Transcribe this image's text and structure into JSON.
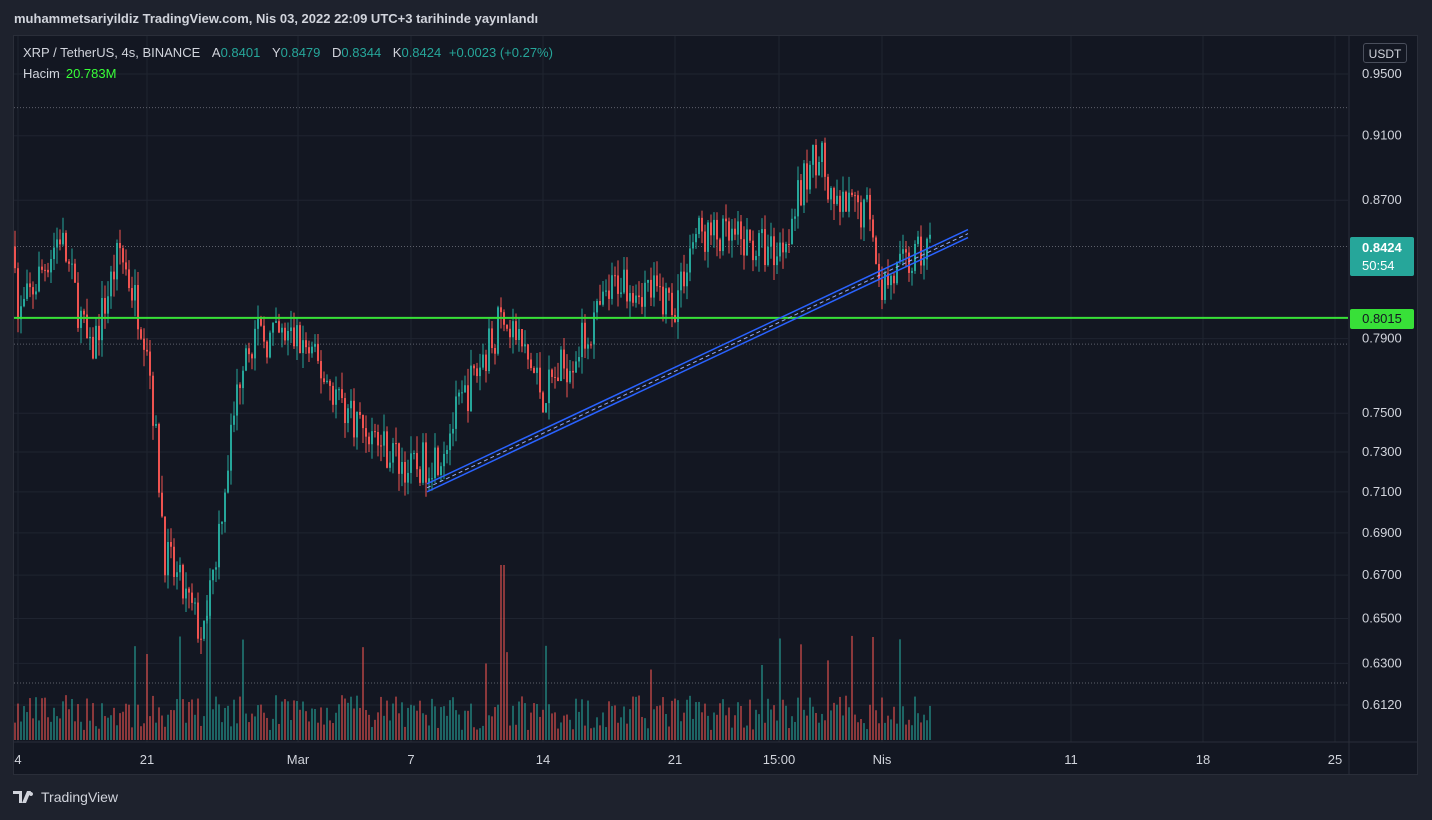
{
  "header": {
    "published_text": "muhammetsariyildiz TradingView.com, Nis 03, 2022 22:09 UTC+3 tarihinde yayınlandı"
  },
  "legend": {
    "symbol": "XRP / TetherUS, 4s, BINANCE",
    "open_label": "A",
    "open": "0.8401",
    "high_label": "Y",
    "high": "0.8479",
    "low_label": "D",
    "low": "0.8344",
    "close_label": "K",
    "close": "0.8424",
    "change": "+0.0023 (+0.27%)",
    "volume_label": "Hacim",
    "volume": "20.783M"
  },
  "price_axis": {
    "currency": "USDT"
  },
  "last_price_tag": {
    "price": "0.8424",
    "countdown": "50:54"
  },
  "level_tag": {
    "price": "0.8015"
  },
  "branding": {
    "name": "TradingView"
  },
  "chart_data": {
    "type": "candlestick",
    "symbol": "XRP / TetherUS",
    "interval": "4s",
    "exchange": "BINANCE",
    "y_scale": "log",
    "y_ticks": [
      0.95,
      0.91,
      0.87,
      0.79,
      0.75,
      0.73,
      0.71,
      0.69,
      0.67,
      0.65,
      0.63,
      0.612
    ],
    "x_ticks": [
      "4",
      "21",
      "Mar",
      "7",
      "14",
      "21",
      "15:00",
      "Nis",
      "11",
      "18",
      "25"
    ],
    "price_path": [
      {
        "x": "4",
        "price": 0.8
      },
      {
        "x": "~Feb 8",
        "price": 0.85
      },
      {
        "x": "~Feb 12",
        "price": 0.78
      },
      {
        "x": "~Feb 18",
        "price": 0.84
      },
      {
        "x": "21",
        "price": 0.79
      },
      {
        "x": "~Feb 23",
        "price": 0.68
      },
      {
        "x": "~Feb 24",
        "price": 0.64
      },
      {
        "x": "~Feb 26",
        "price": 0.79
      },
      {
        "x": "Mar",
        "price": 0.79
      },
      {
        "x": "~Mar 4",
        "price": 0.75
      },
      {
        "x": "7",
        "price": 0.72
      },
      {
        "x": "~Mar 10",
        "price": 0.73
      },
      {
        "x": "~Mar 12",
        "price": 0.805
      },
      {
        "x": "14",
        "price": 0.76
      },
      {
        "x": "~Mar 17",
        "price": 0.79
      },
      {
        "x": "~Mar 20",
        "price": 0.825
      },
      {
        "x": "21",
        "price": 0.81
      },
      {
        "x": "~Mar 22",
        "price": 0.85
      },
      {
        "x": "15:00",
        "price": 0.84
      },
      {
        "x": "~Mar 28",
        "price": 0.905
      },
      {
        "x": "~Mar 29",
        "price": 0.865
      },
      {
        "x": "~Mar 30",
        "price": 0.865
      },
      {
        "x": "Nis",
        "price": 0.82
      },
      {
        "x": "~Apr 3",
        "price": 0.8424
      }
    ],
    "trendline": {
      "start": {
        "x": "~Mar 8",
        "price": 0.712
      },
      "end": {
        "x": "~Apr 5",
        "price": 0.85
      },
      "color": "#2962ff"
    },
    "horizontal_level": {
      "price": 0.8015,
      "color": "#38e038"
    },
    "last_price": 0.8424,
    "volume": {
      "last": "20.783M",
      "up_color": "#26a69a",
      "down_color": "#ef5350"
    },
    "colors": {
      "up": "#26a69a",
      "down": "#ef5350",
      "background": "#131722"
    }
  }
}
